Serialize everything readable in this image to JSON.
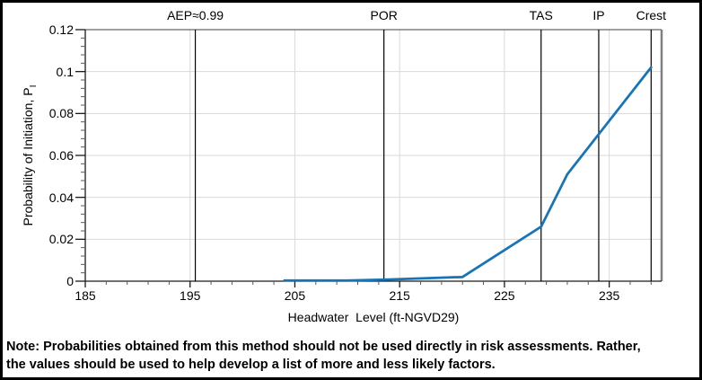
{
  "figure": {
    "note_line1": "Note: Probabilities obtained from this method should not be used directly in risk assessments. Rather,",
    "note_line2": "the values should be used to help develop a list of more and less likely factors."
  },
  "chart_data": {
    "type": "line",
    "title": "",
    "xlabel": "Headwater  Level (ft-NGVD29)",
    "ylabel": "Probability of Initiation, P",
    "ylabel_subscript": "I",
    "xlim": [
      185,
      240
    ],
    "ylim": [
      0,
      0.12
    ],
    "x_ticks": [
      185,
      195,
      205,
      215,
      225,
      235
    ],
    "y_ticks": [
      0,
      0.02,
      0.04,
      0.06,
      0.08,
      0.1,
      0.12
    ],
    "y_tick_labels": [
      "0",
      "0.02",
      "0.04",
      "0.06",
      "0.08",
      "0.1",
      "0.12"
    ],
    "x_minor_tick_step": 2,
    "y_minor_tick_step": 0.004,
    "grid": true,
    "legend": "none",
    "series": [
      {
        "name": "Probability of Initiation",
        "color": "#1874B8",
        "points": [
          [
            204,
            0.0003
          ],
          [
            210,
            0.0003
          ],
          [
            214,
            0.0008
          ],
          [
            221,
            0.002
          ],
          [
            228.5,
            0.026
          ],
          [
            231,
            0.051
          ],
          [
            239,
            0.102
          ]
        ]
      }
    ],
    "reference_lines": [
      {
        "label": "AEP≈0.99",
        "x": 195.5
      },
      {
        "label": "POR",
        "x": 213.5
      },
      {
        "label": "TAS",
        "x": 228.5
      },
      {
        "label": "IP",
        "x": 234
      },
      {
        "label": "Crest",
        "x": 239
      }
    ],
    "colors": {
      "series_line": "#1874B8",
      "gridline": "#D9D9D9",
      "axis": "#1A1A1A",
      "plot_border_top": "#404040",
      "plot_border_right": "#808080",
      "reference_line": "#000000",
      "minor_tick": "#595959",
      "text": "#000000",
      "background": "#FFFFFF"
    }
  }
}
